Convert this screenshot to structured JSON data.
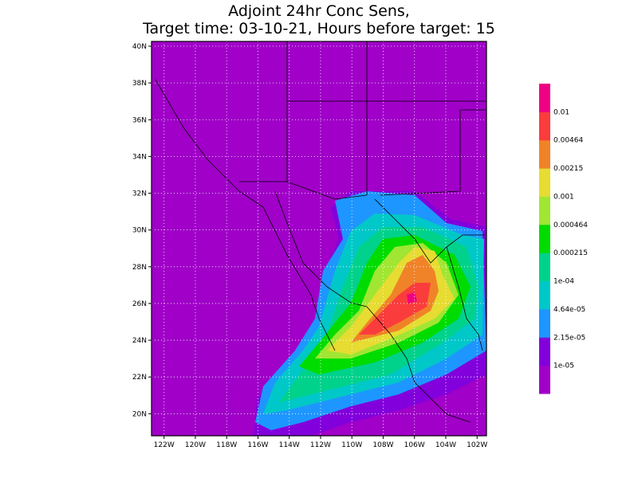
{
  "title": [
    "Adjoint 24hr Conc Sens,",
    "Target time: 03-10-21, Hours before target: 15"
  ],
  "map": {
    "lonlim": [
      -122.8,
      -101.4
    ],
    "latlim": [
      18.8,
      40.26
    ],
    "lonticks": [
      {
        "value": -122,
        "label": "122W"
      },
      {
        "value": -120,
        "label": "120W"
      },
      {
        "value": -118,
        "label": "118W"
      },
      {
        "value": -116,
        "label": "116W"
      },
      {
        "value": -114,
        "label": "114W"
      },
      {
        "value": -112,
        "label": "112W"
      },
      {
        "value": -110,
        "label": "110W"
      },
      {
        "value": -108,
        "label": "108W"
      },
      {
        "value": -106,
        "label": "106W"
      },
      {
        "value": -104,
        "label": "104W"
      },
      {
        "value": -102,
        "label": "102W"
      }
    ],
    "latticks": [
      {
        "value": 20,
        "label": "20N"
      },
      {
        "value": 22,
        "label": "22N"
      },
      {
        "value": 24,
        "label": "24N"
      },
      {
        "value": 26,
        "label": "26N"
      },
      {
        "value": 28,
        "label": "28N"
      },
      {
        "value": 30,
        "label": "30N"
      },
      {
        "value": 32,
        "label": "32N"
      },
      {
        "value": 34,
        "label": "34N"
      },
      {
        "value": 36,
        "label": "36N"
      },
      {
        "value": 38,
        "label": "38N"
      },
      {
        "value": 40,
        "label": "40N"
      }
    ],
    "grid": true
  },
  "colorbar": {
    "colors": [
      "#a000c8",
      "#8200dc",
      "#1e96ff",
      "#00c8c8",
      "#00d28c",
      "#00dc00",
      "#a0e632",
      "#e6dc32",
      "#f08228",
      "#fa3c3c",
      "#f00082"
    ],
    "levels": [
      {
        "value": 1e-05,
        "label": "1e-05"
      },
      {
        "value": 2.15e-05,
        "label": "2.15e-05"
      },
      {
        "value": 4.64e-05,
        "label": "4.64e-05"
      },
      {
        "value": 0.0001,
        "label": "1e-04"
      },
      0.000215,
      0.000464,
      0.001,
      0.00215,
      0.00464,
      0.01
    ]
  }
}
